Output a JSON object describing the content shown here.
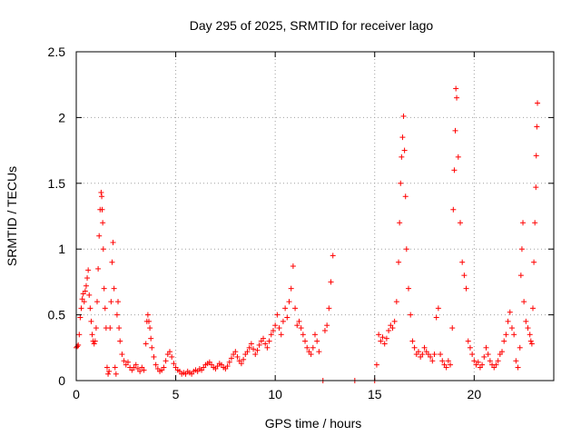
{
  "chart_data": {
    "type": "scatter",
    "title": "Day 295 of 2025, SRMTID for receiver lago",
    "xlabel": "GPS time / hours",
    "ylabel": "SRMTID / TECUs",
    "xlim": [
      0,
      24
    ],
    "ylim": [
      0,
      2.5
    ],
    "x_ticks": [
      0,
      5,
      10,
      15,
      20
    ],
    "x_tick_labels": [
      "0",
      "5",
      "10",
      "15",
      "20"
    ],
    "y_ticks": [
      0,
      0.5,
      1,
      1.5,
      2,
      2.5
    ],
    "y_tick_labels": [
      "0",
      "0.5",
      "1",
      "1.5",
      "2",
      "2.5"
    ],
    "grid": true,
    "marker": "+",
    "marker_color": "#ff0000",
    "series": [
      {
        "name": "SRMTID",
        "points": [
          [
            0.0,
            0.25
          ],
          [
            0.05,
            0.26
          ],
          [
            0.1,
            0.27
          ],
          [
            0.15,
            0.35
          ],
          [
            0.2,
            0.48
          ],
          [
            0.25,
            0.55
          ],
          [
            0.3,
            0.62
          ],
          [
            0.35,
            0.66
          ],
          [
            0.4,
            0.6
          ],
          [
            0.45,
            0.68
          ],
          [
            0.5,
            0.72
          ],
          [
            0.55,
            0.78
          ],
          [
            0.6,
            0.84
          ],
          [
            0.65,
            0.65
          ],
          [
            0.7,
            0.55
          ],
          [
            0.75,
            0.45
          ],
          [
            0.8,
            0.35
          ],
          [
            0.85,
            0.3
          ],
          [
            0.9,
            0.28
          ],
          [
            0.95,
            0.3
          ],
          [
            1.0,
            0.4
          ],
          [
            1.05,
            0.6
          ],
          [
            1.1,
            0.85
          ],
          [
            1.15,
            1.1
          ],
          [
            1.2,
            1.3
          ],
          [
            1.25,
            1.43
          ],
          [
            1.28,
            1.4
          ],
          [
            1.3,
            1.3
          ],
          [
            1.33,
            1.2
          ],
          [
            1.36,
            1.0
          ],
          [
            1.4,
            0.7
          ],
          [
            1.45,
            0.55
          ],
          [
            1.5,
            0.4
          ],
          [
            1.55,
            0.1
          ],
          [
            1.6,
            0.05
          ],
          [
            1.65,
            0.07
          ],
          [
            1.7,
            0.4
          ],
          [
            1.75,
            0.6
          ],
          [
            1.8,
            0.9
          ],
          [
            1.85,
            1.05
          ],
          [
            1.9,
            0.7
          ],
          [
            1.95,
            0.1
          ],
          [
            2.0,
            0.05
          ],
          [
            2.05,
            0.5
          ],
          [
            2.1,
            0.6
          ],
          [
            2.15,
            0.4
          ],
          [
            2.2,
            0.3
          ],
          [
            2.3,
            0.2
          ],
          [
            2.4,
            0.15
          ],
          [
            2.5,
            0.12
          ],
          [
            2.6,
            0.14
          ],
          [
            2.7,
            0.1
          ],
          [
            2.8,
            0.08
          ],
          [
            2.9,
            0.1
          ],
          [
            3.0,
            0.12
          ],
          [
            3.1,
            0.09
          ],
          [
            3.2,
            0.07
          ],
          [
            3.3,
            0.1
          ],
          [
            3.4,
            0.08
          ],
          [
            3.5,
            0.28
          ],
          [
            3.55,
            0.45
          ],
          [
            3.6,
            0.5
          ],
          [
            3.65,
            0.45
          ],
          [
            3.7,
            0.4
          ],
          [
            3.75,
            0.32
          ],
          [
            3.8,
            0.25
          ],
          [
            3.9,
            0.18
          ],
          [
            4.0,
            0.12
          ],
          [
            4.1,
            0.09
          ],
          [
            4.2,
            0.07
          ],
          [
            4.3,
            0.08
          ],
          [
            4.4,
            0.1
          ],
          [
            4.5,
            0.15
          ],
          [
            4.6,
            0.2
          ],
          [
            4.7,
            0.22
          ],
          [
            4.8,
            0.18
          ],
          [
            4.9,
            0.13
          ],
          [
            5.0,
            0.1
          ],
          [
            5.1,
            0.08
          ],
          [
            5.2,
            0.07
          ],
          [
            5.3,
            0.05
          ],
          [
            5.4,
            0.06
          ],
          [
            5.5,
            0.05
          ],
          [
            5.6,
            0.07
          ],
          [
            5.7,
            0.06
          ],
          [
            5.8,
            0.05
          ],
          [
            5.9,
            0.07
          ],
          [
            6.0,
            0.08
          ],
          [
            6.1,
            0.07
          ],
          [
            6.2,
            0.09
          ],
          [
            6.3,
            0.08
          ],
          [
            6.4,
            0.1
          ],
          [
            6.5,
            0.12
          ],
          [
            6.6,
            0.13
          ],
          [
            6.7,
            0.14
          ],
          [
            6.8,
            0.12
          ],
          [
            6.9,
            0.1
          ],
          [
            7.0,
            0.09
          ],
          [
            7.1,
            0.11
          ],
          [
            7.2,
            0.13
          ],
          [
            7.3,
            0.12
          ],
          [
            7.4,
            0.1
          ],
          [
            7.5,
            0.09
          ],
          [
            7.6,
            0.11
          ],
          [
            7.7,
            0.14
          ],
          [
            7.8,
            0.17
          ],
          [
            7.9,
            0.2
          ],
          [
            8.0,
            0.22
          ],
          [
            8.1,
            0.18
          ],
          [
            8.2,
            0.15
          ],
          [
            8.3,
            0.13
          ],
          [
            8.4,
            0.16
          ],
          [
            8.5,
            0.2
          ],
          [
            8.6,
            0.22
          ],
          [
            8.7,
            0.25
          ],
          [
            8.8,
            0.28
          ],
          [
            8.9,
            0.24
          ],
          [
            9.0,
            0.2
          ],
          [
            9.1,
            0.23
          ],
          [
            9.2,
            0.27
          ],
          [
            9.3,
            0.3
          ],
          [
            9.4,
            0.32
          ],
          [
            9.5,
            0.28
          ],
          [
            9.6,
            0.25
          ],
          [
            9.7,
            0.3
          ],
          [
            9.8,
            0.35
          ],
          [
            9.9,
            0.38
          ],
          [
            10.0,
            0.42
          ],
          [
            10.1,
            0.5
          ],
          [
            10.2,
            0.4
          ],
          [
            10.3,
            0.35
          ],
          [
            10.4,
            0.45
          ],
          [
            10.5,
            0.55
          ],
          [
            10.6,
            0.48
          ],
          [
            10.7,
            0.6
          ],
          [
            10.8,
            0.7
          ],
          [
            10.9,
            0.87
          ],
          [
            11.0,
            0.55
          ],
          [
            11.1,
            0.42
          ],
          [
            11.2,
            0.45
          ],
          [
            11.3,
            0.4
          ],
          [
            11.4,
            0.35
          ],
          [
            11.5,
            0.3
          ],
          [
            11.6,
            0.25
          ],
          [
            11.7,
            0.22
          ],
          [
            11.8,
            0.2
          ],
          [
            11.9,
            0.25
          ],
          [
            12.0,
            0.35
          ],
          [
            12.1,
            0.3
          ],
          [
            12.2,
            0.22
          ],
          [
            12.4,
            0.0
          ],
          [
            12.5,
            0.38
          ],
          [
            12.6,
            0.42
          ],
          [
            12.7,
            0.55
          ],
          [
            12.8,
            0.75
          ],
          [
            12.9,
            0.95
          ],
          [
            14.0,
            0.0
          ],
          [
            15.0,
            0.0
          ],
          [
            15.1,
            0.12
          ],
          [
            15.2,
            0.35
          ],
          [
            15.3,
            0.3
          ],
          [
            15.4,
            0.33
          ],
          [
            15.5,
            0.28
          ],
          [
            15.6,
            0.32
          ],
          [
            15.7,
            0.38
          ],
          [
            15.8,
            0.42
          ],
          [
            15.9,
            0.4
          ],
          [
            16.0,
            0.45
          ],
          [
            16.1,
            0.6
          ],
          [
            16.2,
            0.9
          ],
          [
            16.25,
            1.2
          ],
          [
            16.3,
            1.5
          ],
          [
            16.35,
            1.7
          ],
          [
            16.4,
            1.85
          ],
          [
            16.45,
            2.01
          ],
          [
            16.5,
            1.75
          ],
          [
            16.55,
            1.4
          ],
          [
            16.6,
            1.0
          ],
          [
            16.7,
            0.7
          ],
          [
            16.8,
            0.5
          ],
          [
            16.9,
            0.3
          ],
          [
            17.0,
            0.25
          ],
          [
            17.1,
            0.2
          ],
          [
            17.2,
            0.22
          ],
          [
            17.3,
            0.18
          ],
          [
            17.4,
            0.2
          ],
          [
            17.5,
            0.25
          ],
          [
            17.6,
            0.22
          ],
          [
            17.7,
            0.2
          ],
          [
            17.8,
            0.18
          ],
          [
            17.9,
            0.15
          ],
          [
            18.0,
            0.2
          ],
          [
            18.1,
            0.48
          ],
          [
            18.2,
            0.55
          ],
          [
            18.3,
            0.2
          ],
          [
            18.4,
            0.15
          ],
          [
            18.5,
            0.12
          ],
          [
            18.6,
            0.1
          ],
          [
            18.7,
            0.15
          ],
          [
            18.8,
            0.12
          ],
          [
            18.9,
            0.4
          ],
          [
            18.95,
            1.3
          ],
          [
            19.0,
            1.6
          ],
          [
            19.05,
            1.9
          ],
          [
            19.08,
            2.22
          ],
          [
            19.12,
            2.15
          ],
          [
            19.2,
            1.7
          ],
          [
            19.3,
            1.2
          ],
          [
            19.4,
            0.9
          ],
          [
            19.5,
            0.8
          ],
          [
            19.6,
            0.7
          ],
          [
            19.7,
            0.3
          ],
          [
            19.8,
            0.25
          ],
          [
            19.9,
            0.2
          ],
          [
            20.0,
            0.15
          ],
          [
            20.1,
            0.12
          ],
          [
            20.2,
            0.14
          ],
          [
            20.3,
            0.1
          ],
          [
            20.4,
            0.12
          ],
          [
            20.5,
            0.18
          ],
          [
            20.6,
            0.25
          ],
          [
            20.7,
            0.2
          ],
          [
            20.8,
            0.15
          ],
          [
            20.9,
            0.12
          ],
          [
            21.0,
            0.1
          ],
          [
            21.1,
            0.12
          ],
          [
            21.2,
            0.15
          ],
          [
            21.3,
            0.2
          ],
          [
            21.4,
            0.22
          ],
          [
            21.5,
            0.3
          ],
          [
            21.6,
            0.35
          ],
          [
            21.7,
            0.45
          ],
          [
            21.8,
            0.52
          ],
          [
            21.9,
            0.4
          ],
          [
            22.0,
            0.35
          ],
          [
            22.1,
            0.15
          ],
          [
            22.2,
            0.1
          ],
          [
            22.3,
            0.25
          ],
          [
            22.35,
            0.8
          ],
          [
            22.4,
            1.0
          ],
          [
            22.45,
            1.2
          ],
          [
            22.5,
            0.6
          ],
          [
            22.6,
            0.45
          ],
          [
            22.7,
            0.4
          ],
          [
            22.8,
            0.35
          ],
          [
            22.85,
            0.3
          ],
          [
            22.9,
            0.28
          ],
          [
            22.95,
            0.55
          ],
          [
            23.0,
            0.9
          ],
          [
            23.05,
            1.2
          ],
          [
            23.1,
            1.47
          ],
          [
            23.12,
            1.71
          ],
          [
            23.15,
            1.93
          ],
          [
            23.18,
            2.11
          ]
        ]
      }
    ]
  }
}
